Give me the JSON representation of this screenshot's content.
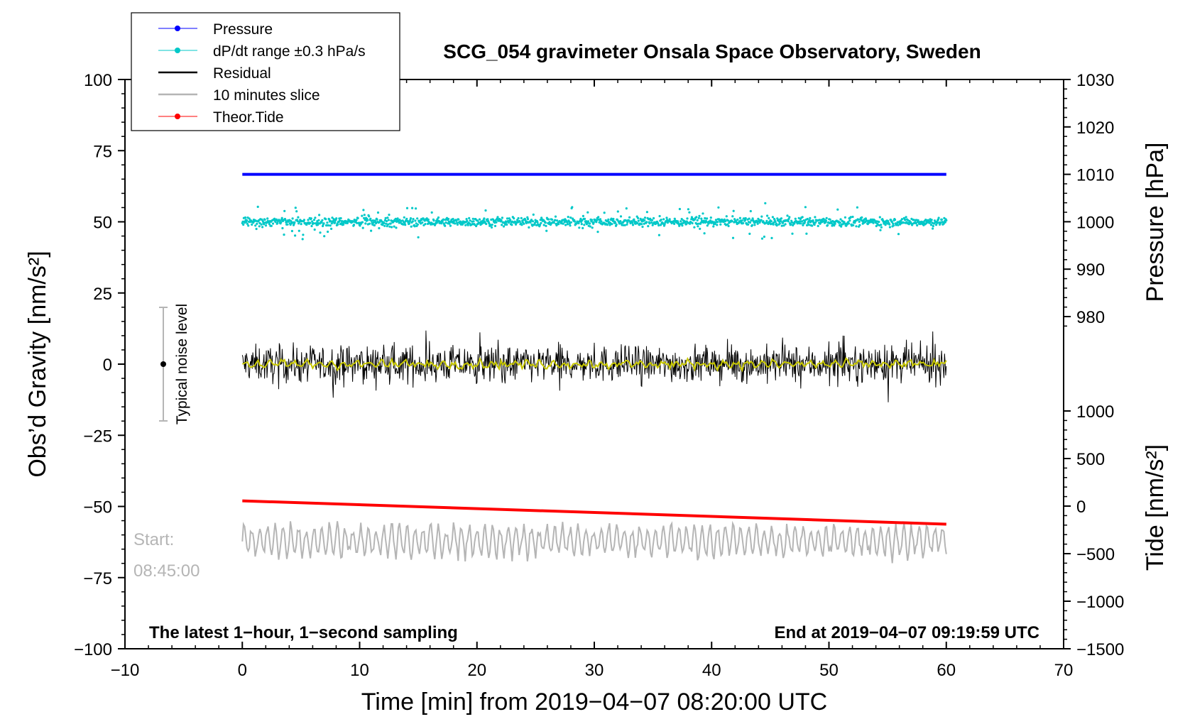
{
  "chart_data": {
    "type": "line",
    "title": "SCG_054 gravimeter Onsala Space Observatory, Sweden",
    "xlabel": "Time [min] from 2019−04−07 08:20:00 UTC",
    "ylabel_left": "Obs’d Gravity [nm/s²]",
    "ylabel_right_top": "Pressure [hPa]",
    "ylabel_right_bottom": "Tide [nm/s²]",
    "xlim": [
      -10,
      70
    ],
    "ylim_left": [
      -100,
      100
    ],
    "x_ticks": [
      "−10",
      "0",
      "10",
      "20",
      "30",
      "40",
      "50",
      "60",
      "70"
    ],
    "y_ticks_left": [
      "100",
      "75",
      "50",
      "25",
      "0",
      "−25",
      "−50",
      "−75",
      "−100"
    ],
    "pressure_ticks": [
      "1030",
      "1020",
      "1010",
      "1000",
      "990",
      "980"
    ],
    "tide_ticks": [
      "1000",
      "500",
      "0",
      "−500",
      "−1000",
      "−1500"
    ],
    "legend": {
      "position": "top-left",
      "entries": [
        {
          "label": "Pressure",
          "color": "#0000ff",
          "marker": "dot"
        },
        {
          "label": "dP/dt range ±0.3 hPa/s",
          "color": "#00c8c8",
          "marker": "dot"
        },
        {
          "label": "Residual",
          "color": "#000000",
          "marker": "line"
        },
        {
          "label": "10 minutes slice",
          "color": "#b5b5b5",
          "marker": "line"
        },
        {
          "label": "Theor.Tide",
          "color": "#ff0000",
          "marker": "dot"
        }
      ]
    },
    "series": [
      {
        "name": "Pressure",
        "color": "#0000ff",
        "axis": "pressure",
        "x": [
          0,
          10,
          20,
          30,
          40,
          50,
          60
        ],
        "values": [
          1010,
          1010,
          1010,
          1010,
          1010,
          1010,
          1010
        ]
      },
      {
        "name": "dP/dt range ±0.3 hPa/s",
        "color": "#00c8c8",
        "axis": "left",
        "center": 50,
        "typical_spread": 1.5,
        "max_spread": 11
      },
      {
        "name": "Residual",
        "color": "#000000",
        "axis": "left",
        "center": 0,
        "typical_spread": 4,
        "max_spread": 11,
        "smoothed_color": "#c8c800"
      },
      {
        "name": "Theor.Tide",
        "color": "#ff0000",
        "axis": "tide",
        "x": [
          0,
          60
        ],
        "values": [
          55,
          -190
        ]
      },
      {
        "name": "10 minutes slice",
        "color": "#b5b5b5",
        "axis": "left",
        "center": -62,
        "amplitude": 5
      }
    ],
    "noise_bar": {
      "label": "Typical noise level",
      "x": -7,
      "y_center": 0,
      "y_low": -20,
      "y_high": 20
    },
    "annotations": {
      "bottom_left": "The latest 1−hour, 1−second sampling",
      "bottom_right": "End at 2019−04−07 09:19:59 UTC",
      "start_label": "Start:",
      "start_time": "08:45:00"
    },
    "grid": false
  }
}
